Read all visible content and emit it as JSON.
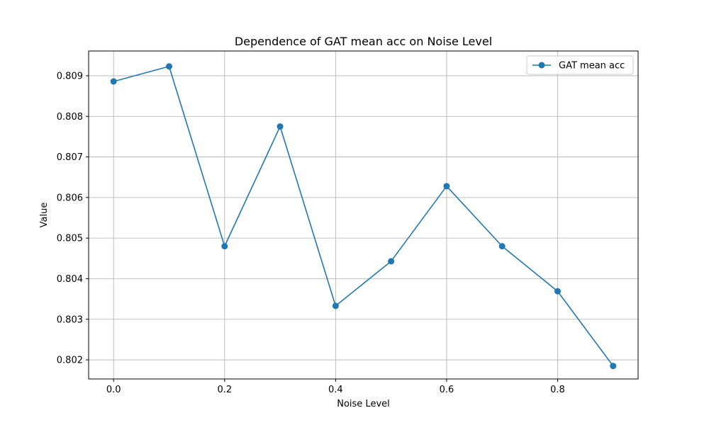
{
  "chart_data": {
    "type": "line",
    "title": "Dependence of GAT mean acc on Noise Level",
    "xlabel": "Noise Level",
    "ylabel": "Value",
    "x": [
      0.0,
      0.1,
      0.2,
      0.3,
      0.4,
      0.5,
      0.6,
      0.7,
      0.8,
      0.9
    ],
    "series": [
      {
        "name": "GAT mean acc",
        "color": "#1f77b4",
        "marker": "circle",
        "values": [
          0.80886,
          0.80923,
          0.8048,
          0.80775,
          0.80333,
          0.80443,
          0.80628,
          0.8048,
          0.80369,
          0.80185
        ]
      }
    ],
    "xlim": [
      -0.045,
      0.945
    ],
    "ylim": [
      0.80153,
      0.80961
    ],
    "xticks": [
      0.0,
      0.2,
      0.4,
      0.6,
      0.8
    ],
    "xtick_labels": [
      "0.0",
      "0.2",
      "0.4",
      "0.6",
      "0.8"
    ],
    "yticks": [
      0.802,
      0.803,
      0.804,
      0.805,
      0.806,
      0.807,
      0.808,
      0.809
    ],
    "ytick_labels": [
      "0.802",
      "0.803",
      "0.804",
      "0.805",
      "0.806",
      "0.807",
      "0.808",
      "0.809"
    ],
    "grid": true,
    "legend_position": "top-right"
  }
}
